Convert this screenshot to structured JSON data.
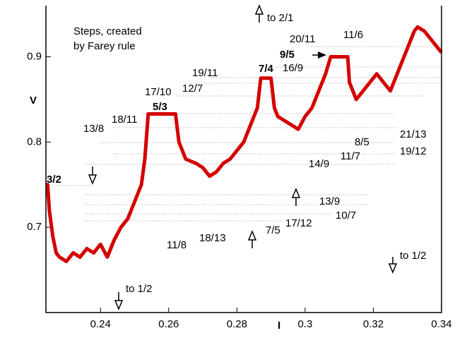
{
  "chart_data": {
    "type": "line",
    "x_label": "I",
    "y_label": "V",
    "x": [
      0.224,
      0.2245,
      0.225,
      0.226,
      0.227,
      0.228,
      0.23,
      0.232,
      0.234,
      0.236,
      0.238,
      0.24,
      0.242,
      0.244,
      0.246,
      0.248,
      0.25,
      0.252,
      0.253,
      0.254,
      0.262,
      0.263,
      0.265,
      0.268,
      0.27,
      0.272,
      0.274,
      0.276,
      0.278,
      0.28,
      0.282,
      0.284,
      0.286,
      0.287,
      0.29,
      0.291,
      0.292,
      0.294,
      0.296,
      0.298,
      0.3,
      0.302,
      0.304,
      0.306,
      0.3075,
      0.3125,
      0.313,
      0.315,
      0.317,
      0.319,
      0.321,
      0.323,
      0.325,
      0.326,
      0.328,
      0.33,
      0.332,
      0.333,
      0.335,
      0.337,
      0.339,
      0.34
    ],
    "series": [
      {
        "color": "#d40000",
        "values": [
          0.75,
          0.75,
          0.72,
          0.69,
          0.67,
          0.665,
          0.66,
          0.67,
          0.665,
          0.675,
          0.67,
          0.68,
          0.665,
          0.685,
          0.7,
          0.71,
          0.73,
          0.75,
          0.78,
          0.833,
          0.833,
          0.8,
          0.78,
          0.775,
          0.77,
          0.76,
          0.765,
          0.775,
          0.78,
          0.79,
          0.8,
          0.82,
          0.84,
          0.875,
          0.875,
          0.84,
          0.83,
          0.825,
          0.82,
          0.815,
          0.83,
          0.84,
          0.86,
          0.88,
          0.9,
          0.9,
          0.87,
          0.85,
          0.86,
          0.87,
          0.88,
          0.87,
          0.86,
          0.87,
          0.89,
          0.91,
          0.93,
          0.935,
          0.93,
          0.92,
          0.91,
          0.905
        ]
      }
    ],
    "xlim": [
      0.224,
      0.34
    ],
    "ylim": [
      0.6,
      0.96
    ],
    "xticks": [
      0.24,
      0.26,
      0.28,
      0.3,
      0.32,
      0.34
    ],
    "yticks": [
      0.7,
      0.8,
      0.9
    ],
    "annotations": [
      "Steps, created",
      "by Farey rule",
      "3/2",
      "13/8",
      "18/11",
      "5/3",
      "17/10",
      "12/7",
      "19/11",
      "7/4",
      "9/5",
      "16/9",
      "20/11",
      "11/6",
      "8/5",
      "21/13",
      "19/12",
      "11/7",
      "14/9",
      "13/9",
      "10/7",
      "17/12",
      "7/5",
      "18/13",
      "11/8",
      "to 2/1",
      "to 1/2",
      "to 1/2"
    ]
  }
}
